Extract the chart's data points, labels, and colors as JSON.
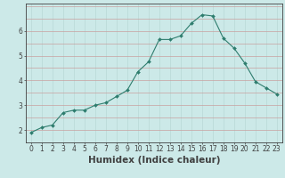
{
  "x": [
    0,
    1,
    2,
    3,
    4,
    5,
    6,
    7,
    8,
    9,
    10,
    11,
    12,
    13,
    14,
    15,
    16,
    17,
    18,
    19,
    20,
    21,
    22,
    23
  ],
  "y": [
    1.9,
    2.1,
    2.2,
    2.7,
    2.8,
    2.8,
    3.0,
    3.1,
    3.35,
    3.6,
    4.35,
    4.75,
    5.65,
    5.65,
    5.8,
    6.3,
    6.65,
    6.6,
    5.7,
    5.3,
    4.7,
    3.95,
    3.7,
    3.45
  ],
  "line_color": "#2e7d6e",
  "marker": "D",
  "marker_size": 2.0,
  "bg_color": "#cce9e8",
  "grid_color_v": "#b8d8d6",
  "grid_color_h": "#c8a0a0",
  "axis_color": "#404040",
  "xlabel": "Humidex (Indice chaleur)",
  "xlabel_fontsize": 7.5,
  "tick_fontsize": 5.5,
  "ylim": [
    1.5,
    7.1
  ],
  "xlim": [
    -0.5,
    23.5
  ],
  "yticks": [
    2,
    3,
    4,
    5,
    6
  ],
  "xticks": [
    0,
    1,
    2,
    3,
    4,
    5,
    6,
    7,
    8,
    9,
    10,
    11,
    12,
    13,
    14,
    15,
    16,
    17,
    18,
    19,
    20,
    21,
    22,
    23
  ]
}
